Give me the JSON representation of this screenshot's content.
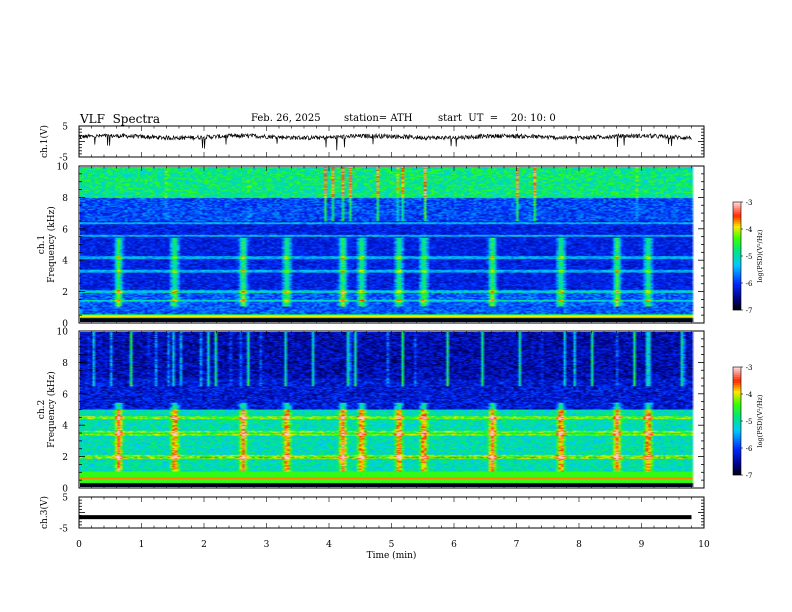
{
  "header": {
    "title": "VLF  Spectra",
    "date": "Feb. 26, 2025",
    "station": "station= ATH",
    "start": "start  UT  =    20: 10: 0"
  },
  "chart_data": [
    {
      "type": "line",
      "name": "ch1-waveform",
      "ylabel": "ch.1(V)",
      "ylim": [
        -5,
        5
      ],
      "ytick_labels": [
        "5",
        "-5"
      ],
      "xlim": [
        0,
        10
      ],
      "description_values": {
        "baseline_v": 1.5,
        "noise_amplitude_v": 0.7
      }
    },
    {
      "type": "heatmap",
      "name": "ch1-spectrogram",
      "ylabel": "ch.1\nFrequency (kHz)",
      "ylim": [
        0,
        10
      ],
      "ytick_labels": [
        "0",
        "2",
        "4",
        "6",
        "8",
        "10"
      ],
      "xlim": [
        0,
        10
      ],
      "colorbar": {
        "label": "log(PSD)(V²/Hz)",
        "range": [
          -7,
          -3
        ],
        "tick_labels": [
          "-3",
          "-4",
          "-5",
          "-6",
          "-7"
        ]
      },
      "bursts_min": [
        0.6,
        1.5,
        2.6,
        3.3,
        4.2,
        4.5,
        5.1,
        5.5,
        6.6,
        7.7,
        8.6,
        9.1
      ],
      "bands_khz": [
        0.4,
        1.4,
        2.0,
        3.3,
        4.2,
        5.6,
        6.4
      ]
    },
    {
      "type": "heatmap",
      "name": "ch2-spectrogram",
      "ylabel": "ch.2\nFrequency (kHz)",
      "ylim": [
        0,
        10
      ],
      "ytick_labels": [
        "0",
        "2",
        "4",
        "6",
        "8",
        "10"
      ],
      "xlim": [
        0,
        10
      ],
      "colorbar": {
        "label": "log(PSD)(V²/Hz)",
        "range": [
          -7,
          -3
        ],
        "tick_labels": [
          "-3",
          "-4",
          "-5",
          "-6",
          "-7"
        ]
      },
      "bursts_min": [
        0.6,
        1.5,
        2.6,
        3.3,
        4.2,
        4.5,
        5.1,
        5.5,
        6.6,
        7.7,
        8.6,
        9.1
      ],
      "bands_khz": [
        0.6,
        1.9,
        2.0,
        3.4,
        3.6,
        4.5
      ]
    },
    {
      "type": "line",
      "name": "ch3-waveform",
      "ylabel": "ch.3(V)",
      "ylim": [
        -5,
        5
      ],
      "ytick_labels": [
        "5",
        "-5"
      ],
      "xlim": [
        0,
        10
      ],
      "xlabel": "Time  (min)",
      "xtick_labels": [
        "0",
        "1",
        "2",
        "3",
        "4",
        "5",
        "6",
        "7",
        "8",
        "9",
        "10"
      ],
      "description_values": {
        "level_v": -1.5
      }
    }
  ]
}
